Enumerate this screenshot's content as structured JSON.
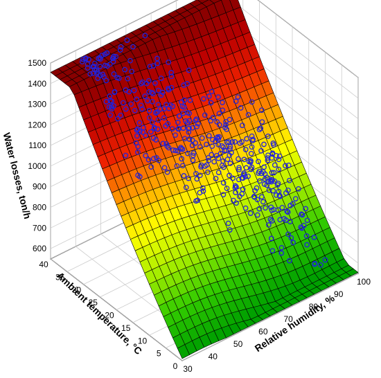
{
  "chart_data": {
    "type": "surface3d",
    "title": "",
    "zlabel": "Water losses, ton/h",
    "ylabel": "Ambient temperature, °C",
    "xlabel": "Relative humidity, %",
    "x_ticks": [
      "30",
      "40",
      "50",
      "60",
      "70",
      "80",
      "90",
      "100"
    ],
    "y_ticks": [
      "0",
      "5",
      "10",
      "15",
      "20",
      "25",
      "30",
      "35",
      "40"
    ],
    "z_ticks": [
      "600",
      "700",
      "800",
      "900",
      "1000",
      "1100",
      "1200",
      "1300",
      "1400",
      "1500"
    ],
    "xlim": [
      30,
      100
    ],
    "ylim": [
      0,
      40
    ],
    "zlim": [
      550,
      1500
    ],
    "grid": true,
    "surface": {
      "colormap": [
        "#00a000",
        "#33cc00",
        "#aaee00",
        "#ffff00",
        "#ff9900",
        "#ee2200",
        "#bb0000",
        "#880000"
      ],
      "edge_color": "#000000"
    },
    "series": [
      {
        "marker": "circle",
        "color": "#2222dd"
      }
    ]
  }
}
